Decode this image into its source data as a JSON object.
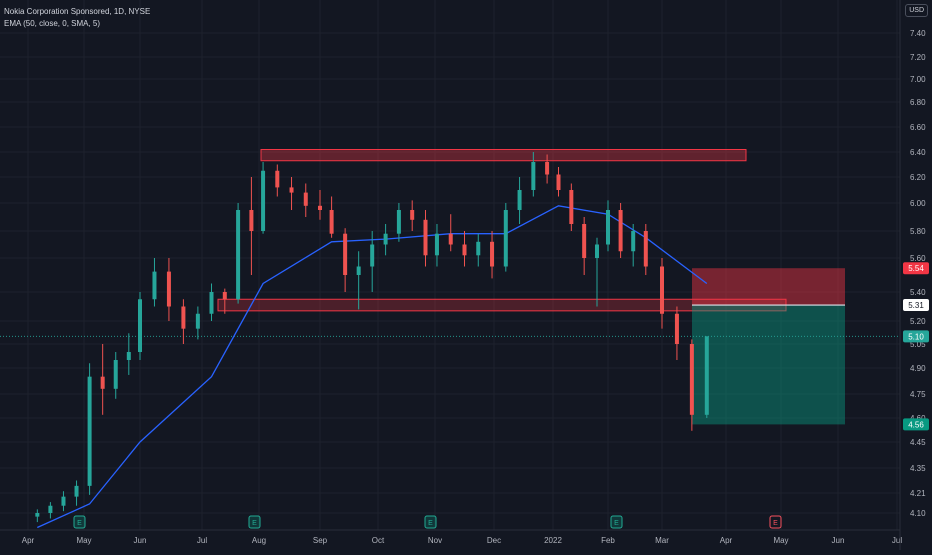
{
  "chart_data": {
    "type": "candlestick",
    "title": "Nokia Corporation Sponsored, 1D, NYSE",
    "indicator_label": "EMA (50, close, 0, SMA, 5)",
    "currency": "USD",
    "x_ticks": [
      "Apr",
      "May",
      "Jun",
      "Jul",
      "Aug",
      "Sep",
      "Oct",
      "Nov",
      "Dec",
      "2022",
      "Feb",
      "Mar",
      "Apr",
      "May",
      "Jun",
      "Jul"
    ],
    "y_ticks": [
      "7.40",
      "7.20",
      "7.00",
      "6.80",
      "6.60",
      "6.40",
      "6.20",
      "6.00",
      "5.80",
      "5.60",
      "5.40",
      "5.20",
      "5.05",
      "4.90",
      "4.75",
      "4.60",
      "4.45",
      "4.35",
      "4.21",
      "4.10"
    ],
    "ylim": [
      4.08,
      7.55
    ],
    "price_labels": {
      "stop": "5.54",
      "entry": "5.31",
      "last": "5.10",
      "target": "4.56"
    },
    "earnings_markers": [
      "E",
      "E",
      "E",
      "E",
      "E"
    ],
    "resistance_zone": {
      "low": 6.33,
      "high": 6.42
    },
    "support_zone": {
      "low": 5.27,
      "high": 5.35
    },
    "position": {
      "entry": 5.31,
      "stop": 5.54,
      "target": 4.56
    },
    "candles": [
      [
        "Apr 6",
        4.08,
        4.12,
        4.05,
        4.1
      ],
      [
        "Apr 13",
        4.1,
        4.16,
        4.07,
        4.14
      ],
      [
        "Apr 20",
        4.14,
        4.22,
        4.11,
        4.19
      ],
      [
        "Apr 27",
        4.19,
        4.28,
        4.14,
        4.25
      ],
      [
        "May 4",
        4.25,
        4.93,
        4.2,
        4.85
      ],
      [
        "May 11",
        4.85,
        5.05,
        4.62,
        4.78
      ],
      [
        "May 18",
        4.78,
        5.0,
        4.72,
        4.95
      ],
      [
        "May 25",
        4.95,
        5.12,
        4.86,
        5.0
      ],
      [
        "Jun 1",
        5.0,
        5.4,
        4.95,
        5.35
      ],
      [
        "Jun 8",
        5.35,
        5.6,
        5.3,
        5.52
      ],
      [
        "Jun 15",
        5.52,
        5.6,
        5.2,
        5.3
      ],
      [
        "Jun 22",
        5.3,
        5.35,
        5.05,
        5.15
      ],
      [
        "Jun 29",
        5.15,
        5.3,
        5.08,
        5.25
      ],
      [
        "Jul 6",
        5.25,
        5.45,
        5.2,
        5.4
      ],
      [
        "Jul 13",
        5.4,
        5.42,
        5.25,
        5.35
      ],
      [
        "Jul 20",
        5.35,
        6.0,
        5.32,
        5.95
      ],
      [
        "Jul 27",
        5.95,
        6.2,
        5.5,
        5.8
      ],
      [
        "Aug 3",
        5.8,
        6.32,
        5.78,
        6.25
      ],
      [
        "Aug 10",
        6.25,
        6.3,
        6.05,
        6.12
      ],
      [
        "Aug 17",
        6.12,
        6.2,
        5.95,
        6.08
      ],
      [
        "Aug 24",
        6.08,
        6.15,
        5.9,
        5.98
      ],
      [
        "Aug 31",
        5.98,
        6.1,
        5.88,
        5.95
      ],
      [
        "Sep 7",
        5.95,
        6.05,
        5.75,
        5.78
      ],
      [
        "Sep 14",
        5.78,
        5.82,
        5.4,
        5.5
      ],
      [
        "Sep 21",
        5.5,
        5.65,
        5.28,
        5.55
      ],
      [
        "Sep 28",
        5.55,
        5.8,
        5.4,
        5.7
      ],
      [
        "Oct 5",
        5.7,
        5.85,
        5.62,
        5.78
      ],
      [
        "Oct 12",
        5.78,
        6.0,
        5.72,
        5.95
      ],
      [
        "Oct 19",
        5.95,
        6.02,
        5.8,
        5.88
      ],
      [
        "Oct 26",
        5.88,
        5.95,
        5.55,
        5.62
      ],
      [
        "Nov 2",
        5.62,
        5.85,
        5.55,
        5.78
      ],
      [
        "Nov 9",
        5.78,
        5.92,
        5.65,
        5.7
      ],
      [
        "Nov 16",
        5.7,
        5.8,
        5.55,
        5.62
      ],
      [
        "Nov 23",
        5.62,
        5.78,
        5.55,
        5.72
      ],
      [
        "Nov 30",
        5.72,
        5.8,
        5.48,
        5.55
      ],
      [
        "Dec 7",
        5.55,
        6.0,
        5.52,
        5.95
      ],
      [
        "Dec 14",
        5.95,
        6.2,
        5.85,
        6.1
      ],
      [
        "Dec 21",
        6.1,
        6.4,
        6.05,
        6.32
      ],
      [
        "Dec 28",
        6.32,
        6.38,
        6.15,
        6.22
      ],
      [
        "Jan 4",
        6.22,
        6.28,
        6.05,
        6.1
      ],
      [
        "Jan 11",
        6.1,
        6.15,
        5.8,
        5.85
      ],
      [
        "Jan 18",
        5.85,
        5.9,
        5.5,
        5.6
      ],
      [
        "Jan 25",
        5.6,
        5.75,
        5.3,
        5.7
      ],
      [
        "Feb 1",
        5.7,
        6.02,
        5.65,
        5.95
      ],
      [
        "Feb 8",
        5.95,
        6.0,
        5.6,
        5.65
      ],
      [
        "Feb 15",
        5.65,
        5.85,
        5.55,
        5.8
      ],
      [
        "Feb 22",
        5.8,
        5.85,
        5.5,
        5.55
      ],
      [
        "Mar 1",
        5.55,
        5.6,
        5.15,
        5.25
      ],
      [
        "Mar 8",
        5.25,
        5.3,
        4.95,
        5.05
      ],
      [
        "Mar 15",
        5.05,
        5.08,
        4.52,
        4.62
      ],
      [
        "Mar 22",
        4.62,
        5.1,
        4.6,
        5.1
      ]
    ],
    "ema": [
      [
        "Apr 6",
        4.02
      ],
      [
        "May 4",
        4.15
      ],
      [
        "Jun 1",
        4.45
      ],
      [
        "Jul 6",
        4.85
      ],
      [
        "Aug 3",
        5.45
      ],
      [
        "Sep 7",
        5.72
      ],
      [
        "Oct 5",
        5.74
      ],
      [
        "Nov 9",
        5.78
      ],
      [
        "Dec 7",
        5.78
      ],
      [
        "Jan 4",
        5.98
      ],
      [
        "Feb 1",
        5.92
      ],
      [
        "Feb 22",
        5.75
      ],
      [
        "Mar 22",
        5.45
      ]
    ]
  }
}
